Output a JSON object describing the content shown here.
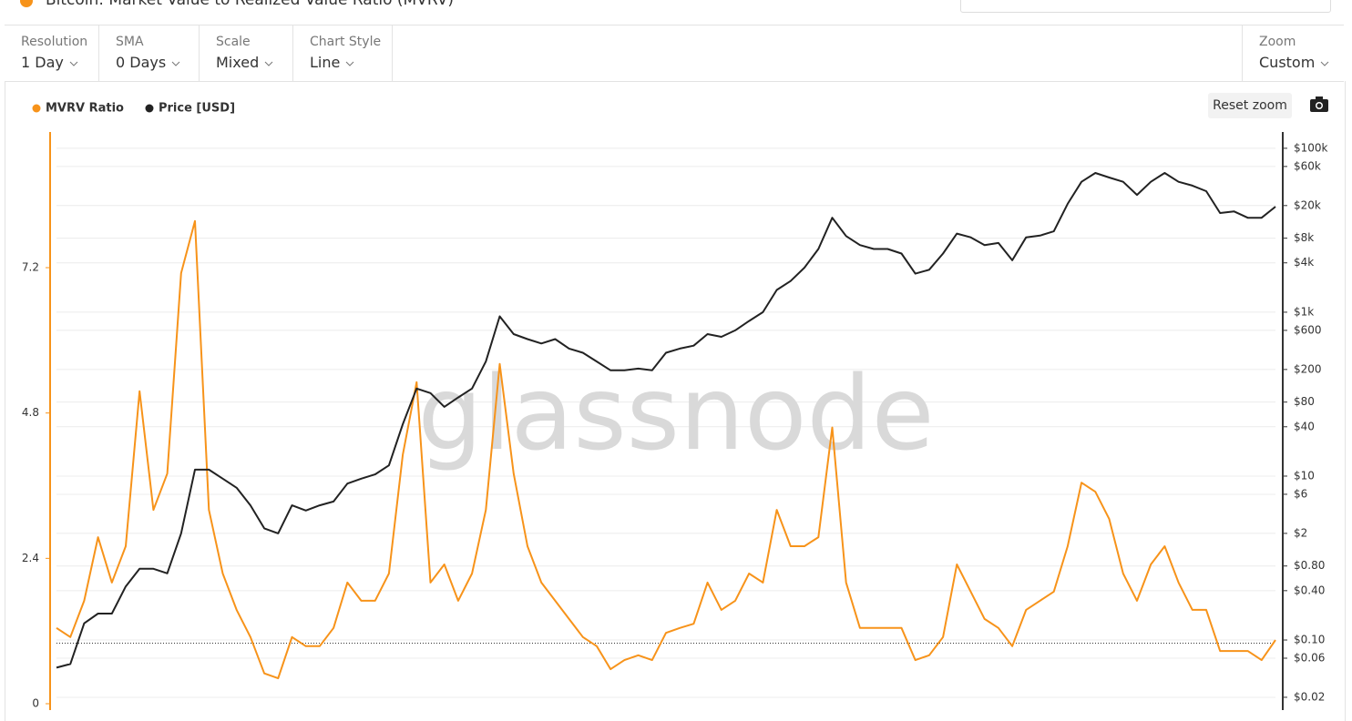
{
  "header": {
    "title": "Bitcoin: Market Value to Realized Value Ratio (MVRV)"
  },
  "toolbar": [
    {
      "label": "Resolution",
      "value": "1 Day"
    },
    {
      "label": "SMA",
      "value": "0 Days"
    },
    {
      "label": "Scale",
      "value": "Mixed"
    },
    {
      "label": "Chart Style",
      "value": "Line"
    }
  ],
  "zoom": {
    "label": "Zoom",
    "value": "Custom"
  },
  "reset_zoom": "Reset zoom",
  "watermark": "glassnode",
  "chart_data": {
    "type": "line",
    "categories": [
      null,
      null,
      null,
      null,
      null,
      null,
      null,
      null,
      null,
      null,
      null,
      null,
      null,
      null,
      null,
      null,
      null,
      null,
      null,
      null,
      null,
      null,
      null,
      null,
      null,
      null,
      null,
      null,
      null,
      null,
      null,
      null,
      null,
      null,
      null,
      null,
      null,
      null,
      null,
      null,
      null,
      null,
      null,
      null,
      null,
      null,
      null,
      null,
      null,
      null,
      null,
      null,
      null,
      null,
      null,
      null,
      null,
      null,
      null,
      null,
      null,
      null,
      null,
      null,
      null,
      null,
      null,
      null,
      null,
      null,
      null,
      null,
      null,
      null,
      null,
      null,
      null,
      null,
      null,
      null,
      null,
      null,
      null,
      null,
      null,
      null,
      null,
      null,
      null
    ],
    "series": [
      {
        "name": "MVRV Ratio",
        "color": "#f7931a",
        "axis": "y",
        "values": [
          1.25,
          1.1,
          1.7,
          2.75,
          2.0,
          2.6,
          5.16,
          3.2,
          3.8,
          7.11,
          7.97,
          3.2,
          2.15,
          1.55,
          1.1,
          0.5,
          0.42,
          1.1,
          0.95,
          0.95,
          1.25,
          2.0,
          1.7,
          1.7,
          2.15,
          4.11,
          5.31,
          2.0,
          2.3,
          1.7,
          2.15,
          3.2,
          5.61,
          3.8,
          2.6,
          2.0,
          1.7,
          1.4,
          1.1,
          0.95,
          0.57,
          0.72,
          0.8,
          0.72,
          1.17,
          1.25,
          1.32,
          2.0,
          1.55,
          1.7,
          2.15,
          2.0,
          3.2,
          2.6,
          2.6,
          2.75,
          4.56,
          2.0,
          1.25,
          1.25,
          1.25,
          1.25,
          0.72,
          0.8,
          1.1,
          2.3,
          1.85,
          1.4,
          1.25,
          0.95,
          1.55,
          1.7,
          1.85,
          2.6,
          3.65,
          3.5,
          3.05,
          2.15,
          1.7,
          2.3,
          2.6,
          2.0,
          1.55,
          1.55,
          0.87,
          0.87,
          0.87,
          0.72,
          1.05
        ]
      },
      {
        "name": "Price [USD]",
        "color": "#222222",
        "axis": "y2",
        "values": [
          0.046,
          0.051,
          0.16,
          0.21,
          0.21,
          0.45,
          0.74,
          0.74,
          0.65,
          2.0,
          12,
          12,
          9.3,
          7.2,
          4.4,
          2.3,
          2.0,
          4.4,
          3.8,
          4.4,
          4.9,
          8.1,
          9.3,
          10.5,
          13.5,
          43,
          117,
          103,
          70,
          91,
          117,
          250,
          890,
          540,
          470,
          415,
          470,
          360,
          320,
          250,
          195,
          195,
          205,
          195,
          320,
          360,
          390,
          540,
          500,
          600,
          780,
          1000,
          1870,
          2400,
          3500,
          5900,
          14200,
          8500,
          6600,
          5900,
          5900,
          5200,
          2950,
          3300,
          5200,
          9100,
          8200,
          6600,
          7000,
          4300,
          8200,
          8600,
          9700,
          21000,
          39000,
          50000,
          44000,
          39000,
          27000,
          39000,
          50000,
          39000,
          35000,
          30000,
          16200,
          17000,
          14200,
          14200,
          19400
        ]
      }
    ],
    "ylim": [
      0,
      9.44
    ],
    "yticks": [
      0,
      2.4,
      4.8,
      7.2
    ],
    "y2lim": [
      0.0167,
      158000
    ],
    "y2log": true,
    "y2ticks": [
      {
        "value": 100000,
        "label": "$100k"
      },
      {
        "value": 60000,
        "label": "$60k"
      },
      {
        "value": 20000,
        "label": "$20k"
      },
      {
        "value": 8000,
        "label": "$8k"
      },
      {
        "value": 4000,
        "label": "$4k"
      },
      {
        "value": 1000,
        "label": "$1k"
      },
      {
        "value": 600,
        "label": "$600"
      },
      {
        "value": 200,
        "label": "$200"
      },
      {
        "value": 80,
        "label": "$80"
      },
      {
        "value": 40,
        "label": "$40"
      },
      {
        "value": 10,
        "label": "$10"
      },
      {
        "value": 6,
        "label": "$6"
      },
      {
        "value": 2,
        "label": "$2"
      },
      {
        "value": 0.8,
        "label": "$0.80"
      },
      {
        "value": 0.4,
        "label": "$0.40"
      },
      {
        "value": 0.1,
        "label": "$0.10"
      },
      {
        "value": 0.06,
        "label": "$0.06"
      },
      {
        "value": 0.02,
        "label": "$0.02"
      }
    ],
    "reference_line": 1,
    "grid": true
  }
}
